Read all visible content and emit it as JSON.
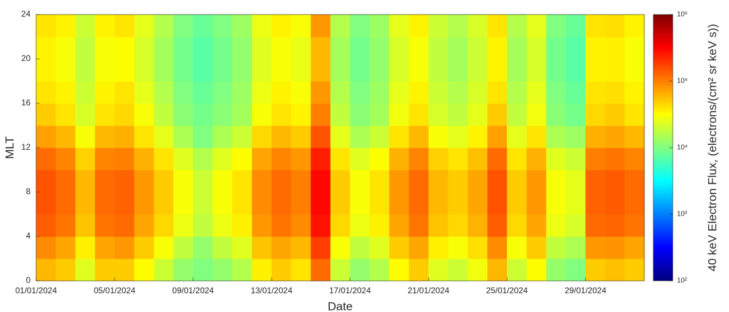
{
  "chart_data": {
    "type": "heatmap",
    "xlabel": "Date",
    "ylabel": "MLT",
    "x": [
      "01/01/2024",
      "02/01/2024",
      "03/01/2024",
      "04/01/2024",
      "05/01/2024",
      "06/01/2024",
      "07/01/2024",
      "08/01/2024",
      "09/01/2024",
      "10/01/2024",
      "11/01/2024",
      "12/01/2024",
      "13/01/2024",
      "14/01/2024",
      "15/01/2024",
      "16/01/2024",
      "17/01/2024",
      "18/01/2024",
      "19/01/2024",
      "20/01/2024",
      "21/01/2024",
      "22/01/2024",
      "23/01/2024",
      "24/01/2024",
      "25/01/2024",
      "26/01/2024",
      "27/01/2024",
      "28/01/2024",
      "29/01/2024",
      "30/01/2024",
      "31/01/2024"
    ],
    "xlim": [
      "01/01/2024",
      "01/02/2024"
    ],
    "xticks": [
      "01/01/2024",
      "05/01/2024",
      "09/01/2024",
      "13/01/2024",
      "17/01/2024",
      "21/01/2024",
      "25/01/2024",
      "29/01/2024"
    ],
    "y": [
      0,
      2,
      4,
      6,
      8,
      10,
      12,
      14,
      16,
      18,
      20,
      22
    ],
    "ylim": [
      0,
      24
    ],
    "yticks": [
      0,
      4,
      8,
      12,
      16,
      20,
      24
    ],
    "z": [
      [
        60000.0,
        50000.0,
        24000.0,
        50000.0,
        50000.0,
        32000.0,
        20000.0,
        12000.0,
        10000.0,
        12000.0,
        16000.0,
        36000.0,
        50000.0,
        40000.0,
        120000.0,
        20000.0,
        12000.0,
        16000.0,
        32000.0,
        50000.0,
        24000.0,
        20000.0,
        28000.0,
        60000.0,
        20000.0,
        32000.0,
        12000.0,
        10000.0,
        50000.0,
        56000.0,
        50000.0
      ],
      [
        90000.0,
        70000.0,
        36000.0,
        70000.0,
        80000.0,
        50000.0,
        30000.0,
        18000.0,
        12000.0,
        18000.0,
        24000.0,
        54000.0,
        70000.0,
        60000.0,
        180000.0,
        30000.0,
        18000.0,
        24000.0,
        50000.0,
        70000.0,
        36000.0,
        30000.0,
        42000.0,
        90000.0,
        30000.0,
        50000.0,
        18000.0,
        15000.0,
        80000.0,
        84000.0,
        70000.0
      ],
      [
        135000.0,
        110000.0,
        54000.0,
        110000.0,
        120000.0,
        70000.0,
        45000.0,
        27000.0,
        18000.0,
        27000.0,
        36000.0,
        80000.0,
        110000.0,
        90000.0,
        270000.0,
        45000.0,
        27000.0,
        36000.0,
        70000.0,
        110000.0,
        54000.0,
        45000.0,
        63000.0,
        135000.0,
        45000.0,
        70000.0,
        27000.0,
        22000.0,
        120000.0,
        126000.0,
        110000.0
      ],
      [
        150000.0,
        120000.0,
        60000.0,
        120000.0,
        130000.0,
        80000.0,
        50000.0,
        30000.0,
        20000.0,
        30000.0,
        40000.0,
        90000.0,
        120000.0,
        100000.0,
        300000.0,
        50000.0,
        30000.0,
        40000.0,
        80000.0,
        120000.0,
        60000.0,
        50000.0,
        70000.0,
        150000.0,
        50000.0,
        80000.0,
        30000.0,
        25000.0,
        130000.0,
        140000.0,
        120000.0
      ],
      [
        150000.0,
        120000.0,
        60000.0,
        120000.0,
        130000.0,
        80000.0,
        50000.0,
        30000.0,
        20000.0,
        30000.0,
        40000.0,
        90000.0,
        120000.0,
        100000.0,
        300000.0,
        50000.0,
        30000.0,
        40000.0,
        80000.0,
        120000.0,
        60000.0,
        50000.0,
        70000.0,
        150000.0,
        50000.0,
        80000.0,
        30000.0,
        25000.0,
        130000.0,
        140000.0,
        120000.0
      ],
      [
        120000.0,
        96000.0,
        48000.0,
        96000.0,
        100000.0,
        64000.0,
        40000.0,
        24000.0,
        16000.0,
        24000.0,
        32000.0,
        72000.0,
        96000.0,
        80000.0,
        240000.0,
        40000.0,
        24000.0,
        32000.0,
        64000.0,
        96000.0,
        48000.0,
        40000.0,
        56000.0,
        120000.0,
        40000.0,
        64000.0,
        24000.0,
        20000.0,
        100000.0,
        110000.0,
        96000.0
      ],
      [
        75000.0,
        60000.0,
        30000.0,
        60000.0,
        65000.0,
        40000.0,
        25000.0,
        15000.0,
        10000.0,
        15000.0,
        20000.0,
        45000.0,
        60000.0,
        50000.0,
        150000.0,
        25000.0,
        15000.0,
        20000.0,
        40000.0,
        60000.0,
        30000.0,
        25000.0,
        35000.0,
        75000.0,
        25000.0,
        40000.0,
        15000.0,
        13000.0,
        65000.0,
        70000.0,
        60000.0
      ],
      [
        50000.0,
        40000.0,
        22000.0,
        40000.0,
        45000.0,
        30000.0,
        18000.0,
        11000.0,
        9000.0,
        11000.0,
        14000.0,
        30000.0,
        40000.0,
        35000.0,
        100000.0,
        18000.0,
        11000.0,
        14000.0,
        28000.0,
        40000.0,
        22000.0,
        18000.0,
        25000.0,
        50000.0,
        18000.0,
        28000.0,
        11000.0,
        9000.0,
        45000.0,
        50000.0,
        40000.0
      ],
      [
        40000.0,
        35000.0,
        20000.0,
        35000.0,
        40000.0,
        25000.0,
        16000.0,
        10000.0,
        8000.0,
        10000.0,
        13000.0,
        27000.0,
        35000.0,
        30000.0,
        80000.0,
        16000.0,
        10000.0,
        13000.0,
        25000.0,
        35000.0,
        20000.0,
        16000.0,
        22000.0,
        40000.0,
        16000.0,
        25000.0,
        10000.0,
        8000.0,
        40000.0,
        42000.0,
        35000.0
      ],
      [
        35000.0,
        30000.0,
        18000.0,
        30000.0,
        32000.0,
        22000.0,
        14000.0,
        9000.0,
        7000.0,
        9000.0,
        12000.0,
        24000.0,
        30000.0,
        26000.0,
        60000.0,
        14000.0,
        9000.0,
        12000.0,
        22000.0,
        30000.0,
        18000.0,
        14000.0,
        20000.0,
        35000.0,
        14000.0,
        22000.0,
        9000.0,
        7000.0,
        35000.0,
        36000.0,
        30000.0
      ],
      [
        35000.0,
        30000.0,
        18000.0,
        30000.0,
        32000.0,
        22000.0,
        14000.0,
        9000.0,
        7000.0,
        9000.0,
        12000.0,
        24000.0,
        30000.0,
        26000.0,
        60000.0,
        14000.0,
        9000.0,
        12000.0,
        22000.0,
        30000.0,
        18000.0,
        14000.0,
        20000.0,
        35000.0,
        14000.0,
        22000.0,
        9000.0,
        7000.0,
        35000.0,
        36000.0,
        30000.0
      ],
      [
        40000.0,
        35000.0,
        20000.0,
        35000.0,
        40000.0,
        25000.0,
        16000.0,
        10000.0,
        8000.0,
        10000.0,
        13000.0,
        27000.0,
        35000.0,
        30000.0,
        80000.0,
        16000.0,
        10000.0,
        13000.0,
        25000.0,
        35000.0,
        20000.0,
        16000.0,
        22000.0,
        40000.0,
        16000.0,
        25000.0,
        10000.0,
        8000.0,
        40000.0,
        42000.0,
        35000.0
      ]
    ],
    "colorbar": {
      "label": "40 keV Electron Flux, (electrons/(cm² sr keV s))",
      "scale": "log",
      "colormap": "jet",
      "lim": [
        100,
        1000000
      ],
      "ticks": [
        {
          "value": 100,
          "label": "10²"
        },
        {
          "value": 1000,
          "label": "10³"
        },
        {
          "value": 10000,
          "label": "10⁴"
        },
        {
          "value": 100000,
          "label": "10⁵"
        },
        {
          "value": 1000000,
          "label": "10⁶"
        }
      ]
    }
  }
}
